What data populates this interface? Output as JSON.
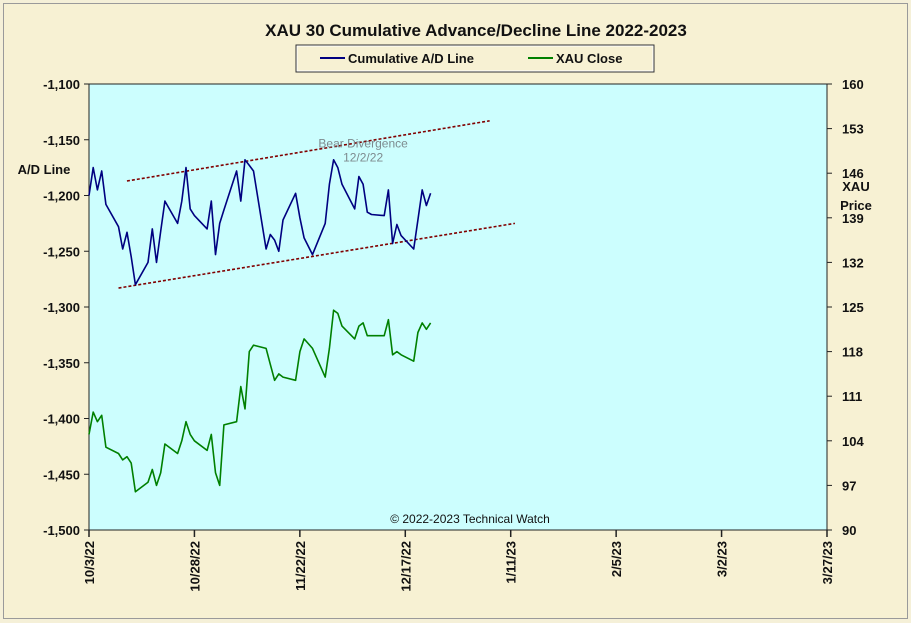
{
  "chart_data": {
    "type": "line",
    "title": "XAU 30 Cumulative Advance/Decline Line 2022-2023",
    "legend": {
      "placement": "top-center",
      "entries": [
        "Cumulative A/D Line",
        "XAU Close"
      ]
    },
    "left_axis": {
      "label": "A/D Line",
      "range": [
        -1500,
        -1100
      ],
      "ticks": [
        -1100,
        -1150,
        -1200,
        -1250,
        -1300,
        -1350,
        -1400,
        -1450,
        -1500
      ],
      "tick_labels": [
        "-1,100",
        "-1,150",
        "-1,200",
        "-1,250",
        "-1,300",
        "-1,350",
        "-1,400",
        "-1,450",
        "-1,500"
      ]
    },
    "right_axis": {
      "label_line1": "XAU",
      "label_line2": "Price",
      "range": [
        90,
        160
      ],
      "ticks": [
        160,
        153,
        146,
        139,
        132,
        125,
        118,
        111,
        104,
        97,
        90
      ],
      "tick_labels": [
        "160",
        "153",
        "146",
        "139",
        "132",
        "125",
        "118",
        "111",
        "104",
        "97",
        "90"
      ]
    },
    "x_axis": {
      "range": [
        "2022-10-03",
        "2023-03-27"
      ],
      "ticks": [
        "2022-10-03",
        "2022-10-28",
        "2022-11-22",
        "2022-12-17",
        "2023-01-11",
        "2023-02-05",
        "2023-03-02",
        "2023-03-27"
      ],
      "tick_labels": [
        "10/3/22",
        "10/28/22",
        "11/22/22",
        "12/17/22",
        "1/11/23",
        "2/5/23",
        "3/2/23",
        "3/27/23"
      ]
    },
    "grid": false,
    "colors": {
      "plot_background": "#ccfefe",
      "ad_line": "#000080",
      "xau_line": "#008000",
      "channel": "#800000"
    },
    "series": [
      {
        "name": "Cumulative A/D Line",
        "axis": "left",
        "points": [
          [
            "2022-10-03",
            -1200
          ],
          [
            "2022-10-04",
            -1175
          ],
          [
            "2022-10-05",
            -1195
          ],
          [
            "2022-10-06",
            -1178
          ],
          [
            "2022-10-07",
            -1208
          ],
          [
            "2022-10-10",
            -1228
          ],
          [
            "2022-10-11",
            -1248
          ],
          [
            "2022-10-12",
            -1233
          ],
          [
            "2022-10-13",
            -1255
          ],
          [
            "2022-10-14",
            -1280
          ],
          [
            "2022-10-17",
            -1260
          ],
          [
            "2022-10-18",
            -1230
          ],
          [
            "2022-10-19",
            -1260
          ],
          [
            "2022-10-20",
            -1232
          ],
          [
            "2022-10-21",
            -1205
          ],
          [
            "2022-10-24",
            -1225
          ],
          [
            "2022-10-25",
            -1205
          ],
          [
            "2022-10-26",
            -1175
          ],
          [
            "2022-10-27",
            -1212
          ],
          [
            "2022-10-28",
            -1218
          ],
          [
            "2022-10-31",
            -1230
          ],
          [
            "2022-11-01",
            -1205
          ],
          [
            "2022-11-02",
            -1253
          ],
          [
            "2022-11-03",
            -1225
          ],
          [
            "2022-11-04",
            -1213
          ],
          [
            "2022-11-07",
            -1178
          ],
          [
            "2022-11-08",
            -1205
          ],
          [
            "2022-11-09",
            -1168
          ],
          [
            "2022-11-10",
            -1173
          ],
          [
            "2022-11-11",
            -1178
          ],
          [
            "2022-11-14",
            -1248
          ],
          [
            "2022-11-15",
            -1235
          ],
          [
            "2022-11-16",
            -1240
          ],
          [
            "2022-11-17",
            -1250
          ],
          [
            "2022-11-18",
            -1222
          ],
          [
            "2022-11-21",
            -1198
          ],
          [
            "2022-11-22",
            -1220
          ],
          [
            "2022-11-23",
            -1238
          ],
          [
            "2022-11-25",
            -1253
          ],
          [
            "2022-11-28",
            -1225
          ],
          [
            "2022-11-29",
            -1190
          ],
          [
            "2022-11-30",
            -1168
          ],
          [
            "2022-12-01",
            -1175
          ],
          [
            "2022-12-02",
            -1190
          ],
          [
            "2022-12-05",
            -1212
          ],
          [
            "2022-12-06",
            -1183
          ],
          [
            "2022-12-07",
            -1190
          ],
          [
            "2022-12-08",
            -1215
          ],
          [
            "2022-12-09",
            -1217
          ],
          [
            "2022-12-12",
            -1218
          ],
          [
            "2022-12-13",
            -1195
          ],
          [
            "2022-12-14",
            -1243
          ],
          [
            "2022-12-15",
            -1226
          ],
          [
            "2022-12-16",
            -1236
          ],
          [
            "2022-12-19",
            -1248
          ],
          [
            "2022-12-20",
            -1222
          ],
          [
            "2022-12-21",
            -1195
          ],
          [
            "2022-12-22",
            -1209
          ],
          [
            "2022-12-23",
            -1198
          ]
        ]
      },
      {
        "name": "XAU Close",
        "axis": "right",
        "points": [
          [
            "2022-10-03",
            105.0
          ],
          [
            "2022-10-04",
            108.5
          ],
          [
            "2022-10-05",
            107.0
          ],
          [
            "2022-10-06",
            108.0
          ],
          [
            "2022-10-07",
            103.0
          ],
          [
            "2022-10-10",
            102.0
          ],
          [
            "2022-10-11",
            101.0
          ],
          [
            "2022-10-12",
            101.5
          ],
          [
            "2022-10-13",
            100.5
          ],
          [
            "2022-10-14",
            96.0
          ],
          [
            "2022-10-17",
            97.5
          ],
          [
            "2022-10-18",
            99.5
          ],
          [
            "2022-10-19",
            97.0
          ],
          [
            "2022-10-20",
            99.0
          ],
          [
            "2022-10-21",
            103.5
          ],
          [
            "2022-10-24",
            102.0
          ],
          [
            "2022-10-25",
            104.0
          ],
          [
            "2022-10-26",
            107.0
          ],
          [
            "2022-10-27",
            105.0
          ],
          [
            "2022-10-28",
            104.0
          ],
          [
            "2022-10-31",
            102.5
          ],
          [
            "2022-11-01",
            105.0
          ],
          [
            "2022-11-02",
            99.0
          ],
          [
            "2022-11-03",
            97.0
          ],
          [
            "2022-11-04",
            106.5
          ],
          [
            "2022-11-07",
            107.0
          ],
          [
            "2022-11-08",
            112.5
          ],
          [
            "2022-11-09",
            109.0
          ],
          [
            "2022-11-10",
            118.0
          ],
          [
            "2022-11-11",
            119.0
          ],
          [
            "2022-11-14",
            118.5
          ],
          [
            "2022-11-15",
            116.0
          ],
          [
            "2022-11-16",
            113.5
          ],
          [
            "2022-11-17",
            114.5
          ],
          [
            "2022-11-18",
            114.0
          ],
          [
            "2022-11-21",
            113.5
          ],
          [
            "2022-11-22",
            118.0
          ],
          [
            "2022-11-23",
            120.0
          ],
          [
            "2022-11-25",
            118.5
          ],
          [
            "2022-11-28",
            114.0
          ],
          [
            "2022-11-29",
            118.5
          ],
          [
            "2022-11-30",
            124.5
          ],
          [
            "2022-12-01",
            124.0
          ],
          [
            "2022-12-02",
            122.0
          ],
          [
            "2022-12-05",
            120.0
          ],
          [
            "2022-12-06",
            122.0
          ],
          [
            "2022-12-07",
            122.5
          ],
          [
            "2022-12-08",
            120.5
          ],
          [
            "2022-12-09",
            120.5
          ],
          [
            "2022-12-12",
            120.5
          ],
          [
            "2022-12-13",
            123.0
          ],
          [
            "2022-12-14",
            117.5
          ],
          [
            "2022-12-15",
            118.0
          ],
          [
            "2022-12-16",
            117.5
          ],
          [
            "2022-12-19",
            116.5
          ],
          [
            "2022-12-20",
            121.0
          ],
          [
            "2022-12-21",
            122.5
          ],
          [
            "2022-12-22",
            121.5
          ],
          [
            "2022-12-23",
            122.5
          ]
        ]
      }
    ],
    "channel_lines": {
      "axis": "left",
      "lines": [
        [
          [
            "2022-10-12",
            -1187
          ],
          [
            "2023-01-06",
            -1133
          ]
        ],
        [
          [
            "2022-10-10",
            -1283
          ],
          [
            "2023-01-12",
            -1225
          ]
        ]
      ]
    },
    "annotations": [
      {
        "line1": "Bear Divergence",
        "line2": "12/2/22",
        "at": [
          "2022-12-07",
          -1157
        ]
      }
    ],
    "credit": "© 2022-2023  Technical Watch"
  }
}
